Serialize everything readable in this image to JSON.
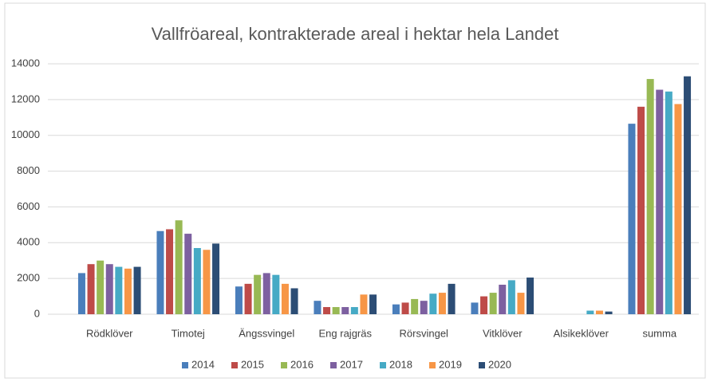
{
  "chart_data": {
    "type": "bar",
    "title": "Vallfröareal, kontrakterade areal i hektar hela Landet",
    "categories": [
      "Rödklöver",
      "Timotej",
      "Ängssvingel",
      "Eng rajgräs",
      "Rörsvingel",
      "Vitklöver",
      "Alsikeklöver",
      "summa"
    ],
    "series": [
      {
        "name": "2014",
        "color": "#4a7ebb",
        "values": [
          2300,
          4650,
          1550,
          750,
          550,
          650,
          0,
          10650
        ]
      },
      {
        "name": "2015",
        "color": "#be4b48",
        "values": [
          2800,
          4750,
          1700,
          400,
          650,
          1000,
          0,
          11600
        ]
      },
      {
        "name": "2016",
        "color": "#98b954",
        "values": [
          3000,
          5250,
          2200,
          400,
          850,
          1200,
          0,
          13150
        ]
      },
      {
        "name": "2017",
        "color": "#7d60a0",
        "values": [
          2800,
          4500,
          2300,
          400,
          750,
          1650,
          0,
          12550
        ]
      },
      {
        "name": "2018",
        "color": "#46aac5",
        "values": [
          2650,
          3700,
          2200,
          400,
          1150,
          1900,
          200,
          12450
        ]
      },
      {
        "name": "2019",
        "color": "#f79646",
        "values": [
          2550,
          3600,
          1700,
          1100,
          1200,
          1200,
          200,
          11750
        ]
      },
      {
        "name": "2020",
        "color": "#2c4d75",
        "values": [
          2650,
          3950,
          1450,
          1100,
          1700,
          2050,
          150,
          13300
        ]
      }
    ],
    "ylim": [
      0,
      14000
    ],
    "yticks": [
      0,
      2000,
      4000,
      6000,
      8000,
      10000,
      12000,
      14000
    ],
    "grid": true,
    "legend": "bottom"
  }
}
